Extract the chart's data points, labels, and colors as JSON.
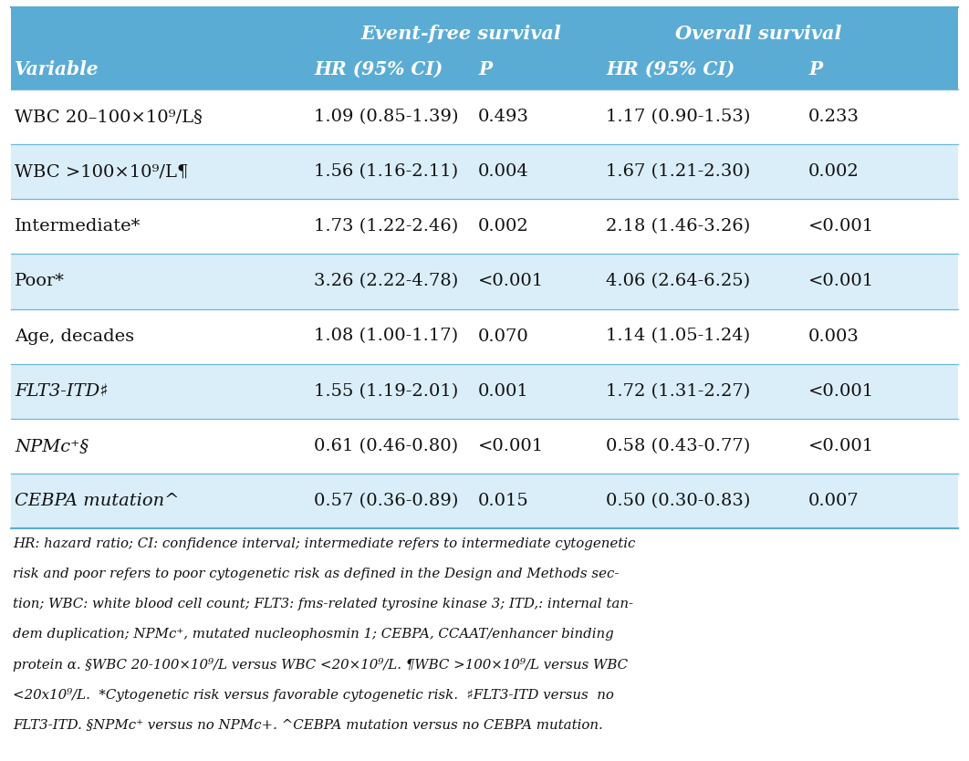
{
  "header_bg": "#5BACD4",
  "row_bg_light": "#DAEEF9",
  "row_bg_white": "#FFFFFF",
  "header_text_color": "#FFFFFF",
  "body_text_color": "#111111",
  "footnote_text_color": "#111111",
  "rows": [
    {
      "var": "WBC 20–100×10⁹/L§",
      "var_italic": false,
      "efs_hr": "1.09 (0.85-1.39)",
      "efs_p": "0.493",
      "os_hr": "1.17 (0.90-1.53)",
      "os_p": "0.233",
      "bg": "#FFFFFF"
    },
    {
      "var": "WBC >100×10⁹/L¶",
      "var_italic": false,
      "efs_hr": "1.56 (1.16-2.11)",
      "efs_p": "0.004",
      "os_hr": "1.67 (1.21-2.30)",
      "os_p": "0.002",
      "bg": "#DAEEF9"
    },
    {
      "var": "Intermediate*",
      "var_italic": false,
      "efs_hr": "1.73 (1.22-2.46)",
      "efs_p": "0.002",
      "os_hr": "2.18 (1.46-3.26)",
      "os_p": "<0.001",
      "bg": "#FFFFFF"
    },
    {
      "var": "Poor*",
      "var_italic": false,
      "efs_hr": "3.26 (2.22-4.78)",
      "efs_p": "<0.001",
      "os_hr": "4.06 (2.64-6.25)",
      "os_p": "<0.001",
      "bg": "#DAEEF9"
    },
    {
      "var": "Age, decades",
      "var_italic": false,
      "efs_hr": "1.08 (1.00-1.17)",
      "efs_p": "0.070",
      "os_hr": "1.14 (1.05-1.24)",
      "os_p": "0.003",
      "bg": "#FFFFFF"
    },
    {
      "var": "FLT3-ITD♯",
      "var_italic": true,
      "efs_hr": "1.55 (1.19-2.01)",
      "efs_p": "0.001",
      "os_hr": "1.72 (1.31-2.27)",
      "os_p": "<0.001",
      "bg": "#DAEEF9"
    },
    {
      "var": "NPMc⁺§",
      "var_italic": true,
      "efs_hr": "0.61 (0.46-0.80)",
      "efs_p": "<0.001",
      "os_hr": "0.58 (0.43-0.77)",
      "os_p": "<0.001",
      "bg": "#FFFFFF"
    },
    {
      "var": "CEBPA mutation^",
      "var_italic": true,
      "efs_hr": "0.57 (0.36-0.89)",
      "efs_p": "0.015",
      "os_hr": "0.50 (0.30-0.83)",
      "os_p": "0.007",
      "bg": "#DAEEF9"
    }
  ],
  "footnote_lines": [
    [
      "HR: hazard ratio; CI: confidence interval; intermediate refers to intermediate cytogenetic",
      "italic"
    ],
    [
      "risk and poor refers to poor cytogenetic risk as defined in the Design and Methods sec-",
      "italic"
    ],
    [
      "tion; WBC: white blood cell count; FLT3: fms-related tyrosine kinase 3; ITD,: internal tan-",
      "italic"
    ],
    [
      "dem duplication; NPMc⁺, mutated nucleophosmin 1; CEBPA, CCAAT/enhancer binding",
      "italic"
    ],
    [
      "protein α. §WBC 20-100×10⁹/L versus WBC <20×10⁹/L. ¶WBC >100×10⁹/L versus WBC",
      "italic"
    ],
    [
      "<20x10⁹/L.  *Cytogenetic risk versus favorable cytogenetic risk.  ♯FLT3-ITD versus  no",
      "italic"
    ],
    [
      "FLT3-ITD. §NPMc⁺ versus no NPMc+. ^CEBPA mutation versus no CEBPA mutation.",
      "italic"
    ]
  ],
  "fig_width": 10.62,
  "fig_height": 8.34,
  "dpi": 100
}
